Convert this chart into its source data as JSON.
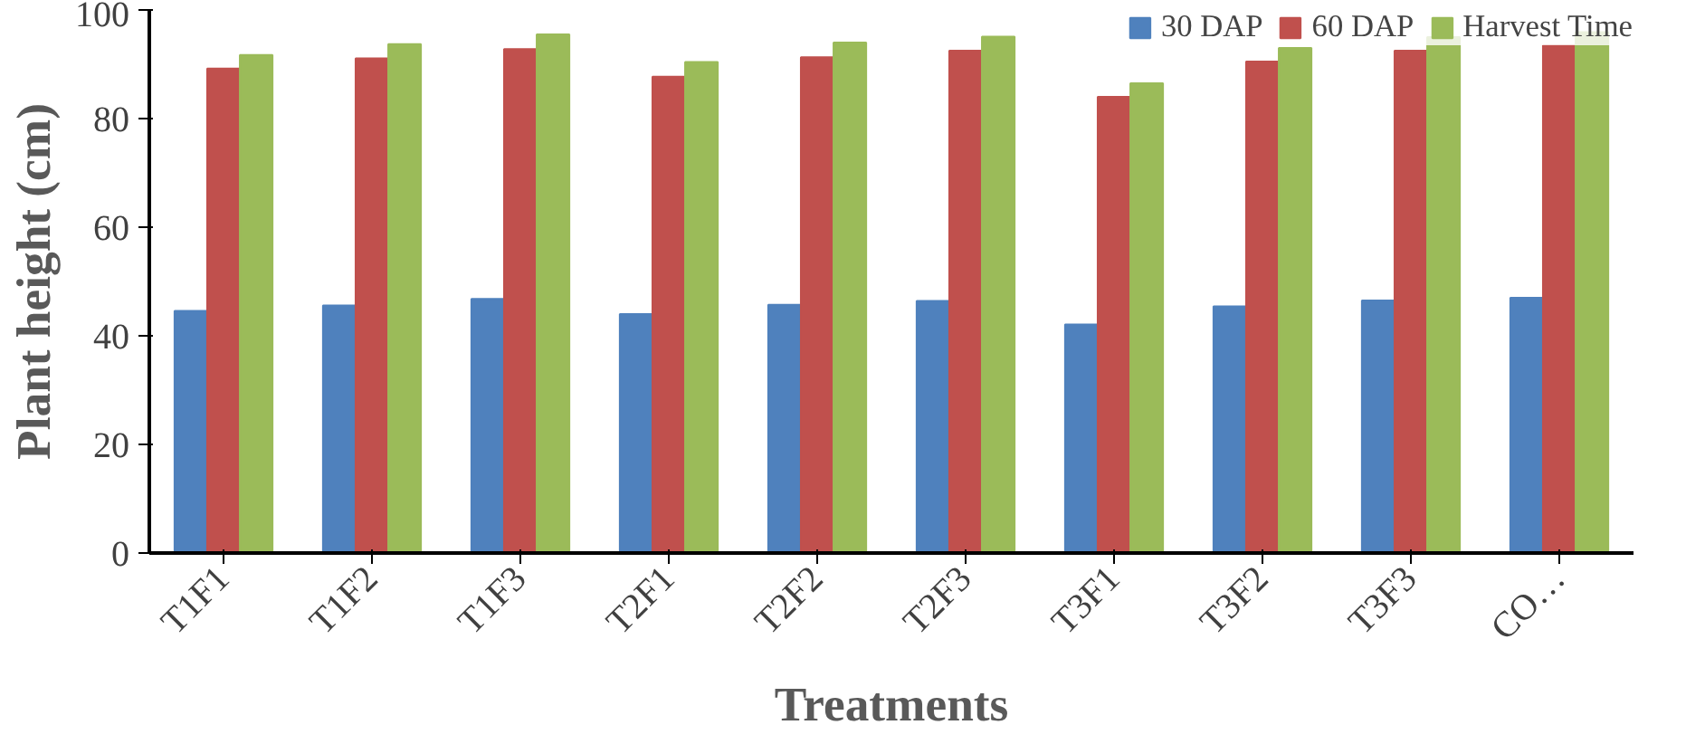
{
  "chart_data": {
    "type": "bar",
    "xlabel": "Treatments",
    "ylabel": "Plant height (cm)",
    "categories": [
      "T1F1",
      "T1F2",
      "T1F3",
      "T2F1",
      "T2F2",
      "T2F3",
      "T3F1",
      "T3F2",
      "T3F3",
      "CO…"
    ],
    "series": [
      {
        "name": "30 DAP",
        "color": "#4f81bd",
        "values": [
          44.6,
          45.6,
          46.8,
          44.0,
          45.7,
          46.4,
          42.1,
          45.4,
          46.5,
          47.0
        ]
      },
      {
        "name": "60 DAP",
        "color": "#c0504d",
        "values": [
          89.2,
          91.1,
          92.8,
          87.7,
          91.3,
          92.5,
          84.0,
          90.5,
          92.5,
          93.5
        ]
      },
      {
        "name": "Harvest Time",
        "color": "#9bbb59",
        "values": [
          91.7,
          93.7,
          95.5,
          90.4,
          94.0,
          95.1,
          86.5,
          93.0,
          95.0,
          95.9
        ]
      }
    ],
    "ylim": [
      0,
      100
    ],
    "yticks": [
      0,
      20,
      40,
      60,
      80,
      100
    ],
    "grid": false,
    "legend": "top right"
  }
}
